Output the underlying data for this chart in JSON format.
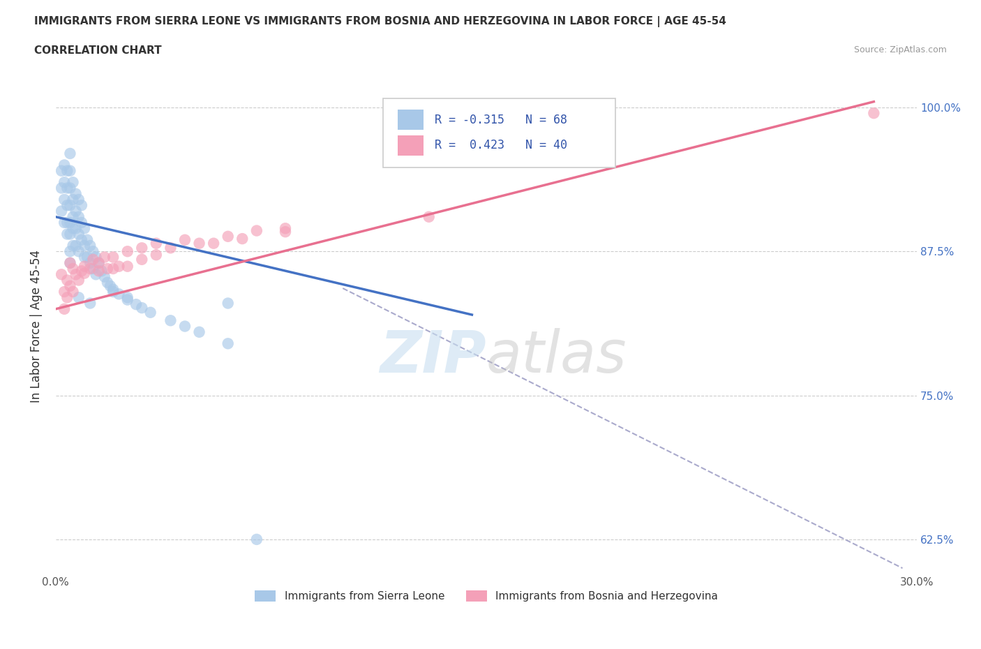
{
  "title": "IMMIGRANTS FROM SIERRA LEONE VS IMMIGRANTS FROM BOSNIA AND HERZEGOVINA IN LABOR FORCE | AGE 45-54",
  "subtitle": "CORRELATION CHART",
  "source": "Source: ZipAtlas.com",
  "ylabel": "In Labor Force | Age 45-54",
  "xlim": [
    0.0,
    0.3
  ],
  "ylim": [
    0.595,
    1.025
  ],
  "xtick_positions": [
    0.0,
    0.05,
    0.1,
    0.15,
    0.2,
    0.25,
    0.3
  ],
  "xticklabels": [
    "0.0%",
    "",
    "",
    "",
    "",
    "",
    "30.0%"
  ],
  "ytick_positions": [
    0.625,
    0.75,
    0.875,
    1.0
  ],
  "yticklabels": [
    "62.5%",
    "75.0%",
    "87.5%",
    "100.0%"
  ],
  "R_blue": -0.315,
  "N_blue": 68,
  "R_pink": 0.423,
  "N_pink": 40,
  "color_blue": "#A8C8E8",
  "color_pink": "#F4A0B8",
  "color_blue_line": "#4472C4",
  "color_pink_line": "#E87090",
  "color_gray_dashed": "#AAAACC",
  "legend_label_blue": "Immigrants from Sierra Leone",
  "legend_label_pink": "Immigrants from Bosnia and Herzegovina",
  "blue_line_x0": 0.0,
  "blue_line_y0": 0.905,
  "blue_line_x1": 0.145,
  "blue_line_y1": 0.82,
  "pink_line_x0": 0.0,
  "pink_line_y0": 0.825,
  "pink_line_x1": 0.285,
  "pink_line_y1": 1.005,
  "dash_line_x0": 0.1,
  "dash_line_y0": 0.843,
  "dash_line_x1": 0.295,
  "dash_line_y1": 0.6,
  "sierra_leone_x": [
    0.002,
    0.002,
    0.002,
    0.003,
    0.003,
    0.003,
    0.003,
    0.004,
    0.004,
    0.004,
    0.004,
    0.004,
    0.005,
    0.005,
    0.005,
    0.005,
    0.005,
    0.005,
    0.005,
    0.005,
    0.006,
    0.006,
    0.006,
    0.006,
    0.006,
    0.007,
    0.007,
    0.007,
    0.007,
    0.008,
    0.008,
    0.008,
    0.008,
    0.009,
    0.009,
    0.009,
    0.01,
    0.01,
    0.01,
    0.011,
    0.011,
    0.012,
    0.012,
    0.013,
    0.013,
    0.014,
    0.014,
    0.015,
    0.016,
    0.017,
    0.018,
    0.019,
    0.02,
    0.022,
    0.025,
    0.028,
    0.03,
    0.033,
    0.04,
    0.045,
    0.05,
    0.06,
    0.07,
    0.02,
    0.025,
    0.008,
    0.012,
    0.06
  ],
  "sierra_leone_y": [
    0.945,
    0.93,
    0.91,
    0.95,
    0.935,
    0.92,
    0.9,
    0.945,
    0.93,
    0.915,
    0.9,
    0.89,
    0.96,
    0.945,
    0.93,
    0.915,
    0.9,
    0.89,
    0.875,
    0.865,
    0.935,
    0.92,
    0.905,
    0.895,
    0.88,
    0.925,
    0.91,
    0.895,
    0.88,
    0.92,
    0.905,
    0.89,
    0.875,
    0.915,
    0.9,
    0.885,
    0.895,
    0.88,
    0.87,
    0.885,
    0.87,
    0.88,
    0.865,
    0.875,
    0.86,
    0.87,
    0.855,
    0.865,
    0.858,
    0.853,
    0.848,
    0.845,
    0.842,
    0.838,
    0.833,
    0.829,
    0.826,
    0.822,
    0.815,
    0.81,
    0.805,
    0.795,
    0.625,
    0.84,
    0.835,
    0.835,
    0.83,
    0.83
  ],
  "bosnia_x": [
    0.002,
    0.003,
    0.003,
    0.004,
    0.004,
    0.005,
    0.005,
    0.006,
    0.006,
    0.007,
    0.008,
    0.009,
    0.01,
    0.012,
    0.013,
    0.015,
    0.017,
    0.018,
    0.02,
    0.022,
    0.025,
    0.03,
    0.035,
    0.04,
    0.045,
    0.05,
    0.06,
    0.07,
    0.08,
    0.01,
    0.015,
    0.02,
    0.025,
    0.03,
    0.035,
    0.055,
    0.065,
    0.08,
    0.13,
    0.285
  ],
  "bosnia_y": [
    0.855,
    0.84,
    0.825,
    0.85,
    0.835,
    0.865,
    0.845,
    0.86,
    0.84,
    0.855,
    0.85,
    0.858,
    0.862,
    0.86,
    0.868,
    0.865,
    0.87,
    0.86,
    0.87,
    0.862,
    0.875,
    0.878,
    0.882,
    0.878,
    0.885,
    0.882,
    0.888,
    0.893,
    0.895,
    0.856,
    0.858,
    0.86,
    0.862,
    0.868,
    0.872,
    0.882,
    0.886,
    0.892,
    0.905,
    0.995
  ]
}
